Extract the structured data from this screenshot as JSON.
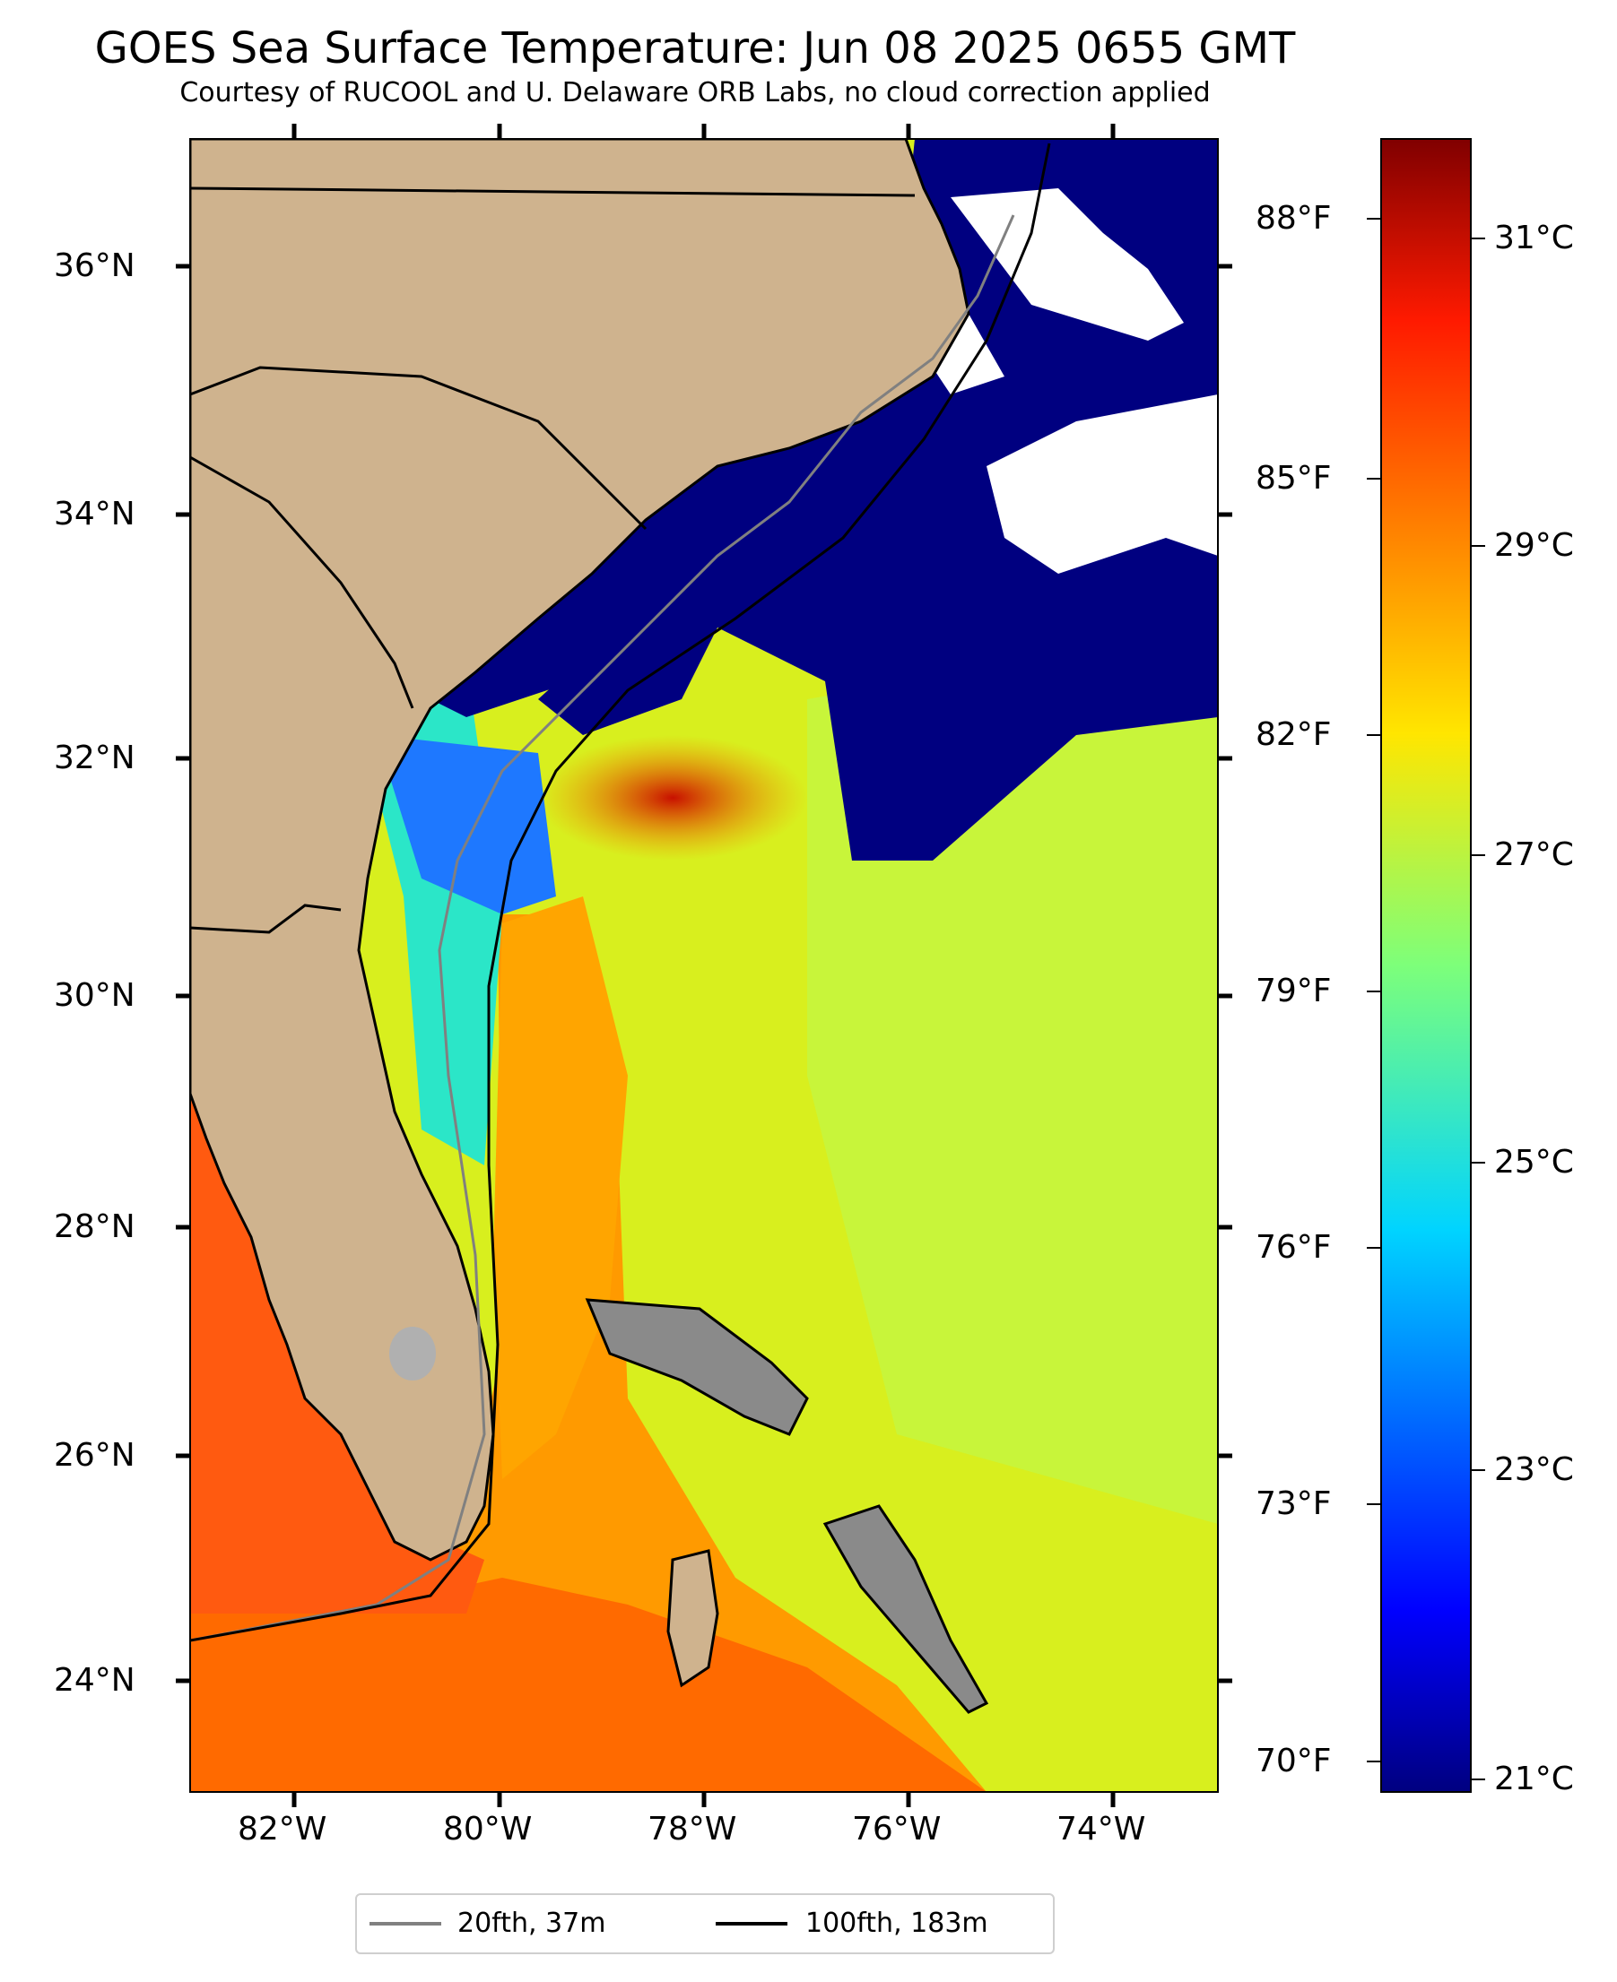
{
  "header": {
    "title": "GOES Sea Surface Temperature: Jun 08 2025 0655 GMT",
    "subtitle": "Courtesy of RUCOOL and U. Delaware ORB Labs, no cloud correction applied"
  },
  "map": {
    "lat_labels": [
      "36°N",
      "34°N",
      "32°N",
      "30°N",
      "28°N",
      "26°N",
      "24°N"
    ],
    "lon_labels": [
      "82°W",
      "80°W",
      "78°W",
      "76°W",
      "74°W"
    ],
    "colors": {
      "land": "#cfb38e",
      "cloud": "#ffffff",
      "cold_water": "#000080",
      "warm_water": "#ff8c00"
    }
  },
  "colorbar": {
    "f_labels": [
      "88°F",
      "85°F",
      "82°F",
      "79°F",
      "76°F",
      "73°F",
      "70°F"
    ],
    "c_labels": [
      "31°C",
      "29°C",
      "27°C",
      "25°C",
      "23°C",
      "21°C"
    ],
    "colormap": "jet"
  },
  "legend": {
    "items": [
      {
        "label": "20fth, 37m",
        "color": "#808080"
      },
      {
        "label": "100fth, 183m",
        "color": "#000000"
      }
    ]
  }
}
